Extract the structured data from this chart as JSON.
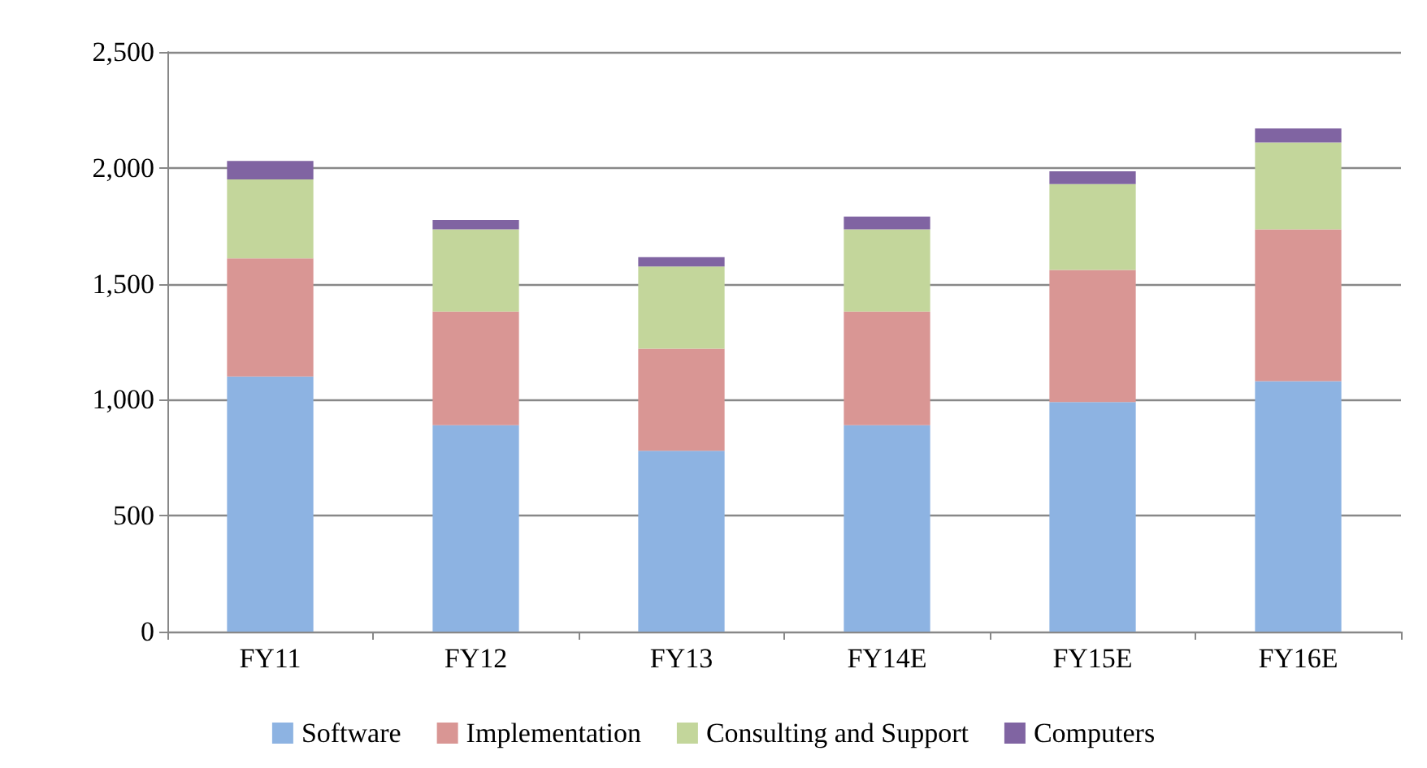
{
  "chart_data": {
    "type": "bar",
    "stacked": true,
    "categories": [
      "FY11",
      "FY12",
      "FY13",
      "FY14E",
      "FY15E",
      "FY16E"
    ],
    "series": [
      {
        "name": "Software",
        "color": "#8db3e2",
        "values": [
          1100,
          890,
          780,
          890,
          990,
          1080
        ]
      },
      {
        "name": "Implementation",
        "color": "#d99694",
        "values": [
          510,
          490,
          440,
          490,
          570,
          655
        ]
      },
      {
        "name": "Consulting and Support",
        "color": "#c3d69b",
        "values": [
          340,
          355,
          355,
          355,
          370,
          375
        ]
      },
      {
        "name": "Computers",
        "color": "#8064a2",
        "values": [
          80,
          40,
          40,
          55,
          55,
          60
        ]
      }
    ],
    "ylim": [
      0,
      2500
    ],
    "yticks": [
      0,
      500,
      {
        "value": 1000,
        "label": "1,000"
      },
      {
        "value": 1500,
        "label": "1,500"
      },
      {
        "value": 2000,
        "label": "2,000"
      },
      {
        "value": 2500,
        "label": "2,500"
      }
    ],
    "grid": "y",
    "legend": "bottom"
  }
}
